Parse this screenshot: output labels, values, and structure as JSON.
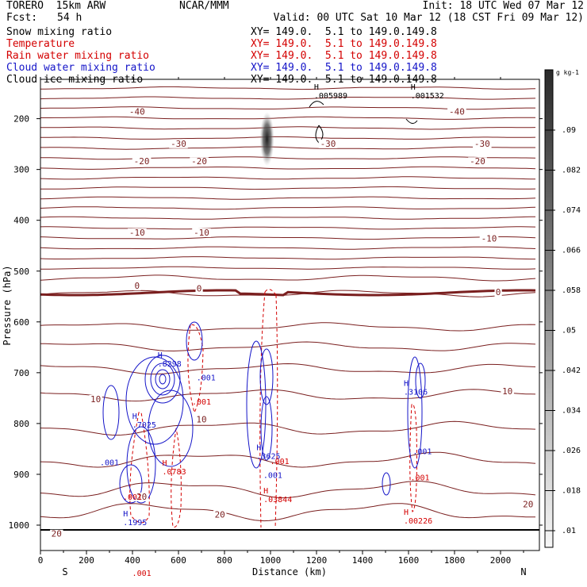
{
  "header": {
    "model": "TORERO  15km ARW",
    "center": "NCAR/MMM",
    "init": "Init: 18 UTC Wed 07 Mar 12",
    "fcst_label": "Fcst:",
    "fcst_value": "54 h",
    "valid": "Valid: 00 UTC Sat 10 Mar 12 (18 CST Fri 09 Mar 12)"
  },
  "fields": [
    {
      "name": "Snow mixing ratio",
      "color": "#000000",
      "xy": "XY= 149.0.  5.1 to 149.0.149.8"
    },
    {
      "name": "Temperature",
      "color": "#d40000",
      "xy": "XY= 149.0.  5.1 to 149.0.149.8"
    },
    {
      "name": "Rain water mixing ratio",
      "color": "#d40000",
      "xy": "XY= 149.0.  5.1 to 149.0.149.8"
    },
    {
      "name": "Cloud water mixing ratio",
      "color": "#1414c8",
      "xy": "XY= 149.0.  5.1 to 149.0.149.8"
    },
    {
      "name": "Cloud ice mixing ratio",
      "color": "#000000",
      "xy": "XY= 149.0.  5.1 to 149.0.149.8"
    }
  ],
  "chart_data": {
    "type": "contour",
    "xlabel": "Distance (km)",
    "ylabel": "Pressure (hPa)",
    "xlim": [
      0,
      2170
    ],
    "ylim": [
      1050,
      100
    ],
    "x_ticks": [
      0,
      200,
      400,
      600,
      800,
      1000,
      1200,
      1400,
      1600,
      1800,
      2000
    ],
    "y_ticks": [
      200,
      300,
      400,
      500,
      600,
      700,
      800,
      900,
      1000
    ],
    "end_labels": {
      "left": "S",
      "right": "N"
    },
    "colorbar": {
      "unit": "g kg-1",
      "ticks": [
        ".01",
        ".018",
        ".026",
        ".034",
        ".042",
        ".05",
        ".058",
        ".066",
        ".074",
        ".082",
        ".09"
      ]
    },
    "temperature_labels": [
      {
        "x": 420,
        "p": 192,
        "text": "-40"
      },
      {
        "x": 1810,
        "p": 192,
        "text": "-40"
      },
      {
        "x": 600,
        "p": 255,
        "text": "-30"
      },
      {
        "x": 1250,
        "p": 255,
        "text": "-30"
      },
      {
        "x": 1920,
        "p": 255,
        "text": "-30"
      },
      {
        "x": 440,
        "p": 290,
        "text": "-20"
      },
      {
        "x": 690,
        "p": 290,
        "text": "-20"
      },
      {
        "x": 1900,
        "p": 290,
        "text": "-20"
      },
      {
        "x": 420,
        "p": 430,
        "text": "-10"
      },
      {
        "x": 700,
        "p": 430,
        "text": "-10"
      },
      {
        "x": 1950,
        "p": 442,
        "text": "-10"
      },
      {
        "x": 420,
        "p": 535,
        "text": "0"
      },
      {
        "x": 690,
        "p": 540,
        "text": "0"
      },
      {
        "x": 1990,
        "p": 547,
        "text": "0"
      },
      {
        "x": 240,
        "p": 758,
        "text": "10"
      },
      {
        "x": 700,
        "p": 798,
        "text": "10"
      },
      {
        "x": 2030,
        "p": 742,
        "text": "10"
      },
      {
        "x": 440,
        "p": 950,
        "text": "20"
      },
      {
        "x": 780,
        "p": 985,
        "text": "20"
      },
      {
        "x": 70,
        "p": 1023,
        "text": "20"
      },
      {
        "x": 2120,
        "p": 965,
        "text": "20"
      }
    ],
    "maxima": [
      {
        "x": 1210,
        "p": 160,
        "text": ".005989",
        "color": "#000000"
      },
      {
        "x": 1630,
        "p": 160,
        "text": ".001532",
        "color": "#000000"
      },
      {
        "x": 530,
        "p": 688,
        "text": ".8298",
        "color": "#1414c8"
      },
      {
        "x": 420,
        "p": 808,
        "text": ".7025",
        "color": "#1414c8"
      },
      {
        "x": 960,
        "p": 870,
        "text": ".3625",
        "color": "#1414c8"
      },
      {
        "x": 1600,
        "p": 743,
        "text": ".3106",
        "color": "#1414c8"
      },
      {
        "x": 380,
        "p": 1000,
        "text": ".1995",
        "color": "#1414c8"
      },
      {
        "x": 550,
        "p": 900,
        "text": ".0783",
        "color": "#d40000"
      },
      {
        "x": 990,
        "p": 955,
        "text": ".03844",
        "color": "#d40000"
      },
      {
        "x": 1600,
        "p": 997,
        "text": ".00226",
        "color": "#d40000"
      }
    ],
    "small_labels": [
      {
        "x": 720,
        "p": 715,
        "text": ".001",
        "color": "#1414c8"
      },
      {
        "x": 700,
        "p": 763,
        "text": ".001",
        "color": "#d40000"
      },
      {
        "x": 300,
        "p": 882,
        "text": ".001",
        "color": "#1414c8"
      },
      {
        "x": 1040,
        "p": 880,
        "text": ".001",
        "color": "#d40000"
      },
      {
        "x": 1010,
        "p": 907,
        "text": ".001",
        "color": "#1414c8"
      },
      {
        "x": 1660,
        "p": 860,
        "text": ".001",
        "color": "#1414c8"
      },
      {
        "x": 1650,
        "p": 912,
        "text": ".001",
        "color": "#d40000"
      },
      {
        "x": 400,
        "p": 950,
        "text": ".001",
        "color": "#d40000"
      },
      {
        "x": 440,
        "p": 1100,
        "text": ".001",
        "color": "#d40000"
      }
    ]
  }
}
